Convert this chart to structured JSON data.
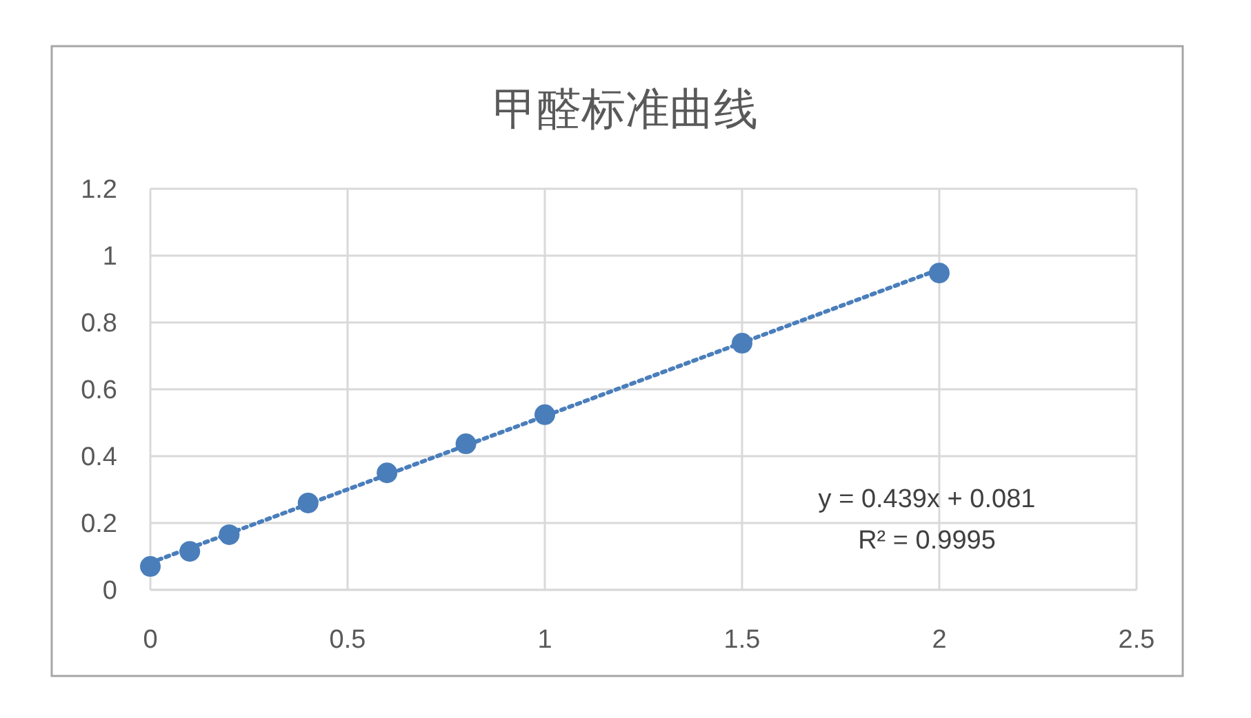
{
  "chart_data": {
    "type": "scatter",
    "title": "甲醛标准曲线",
    "series": [
      {
        "color": "#4a7ebb",
        "x": [
          0,
          0.1,
          0.2,
          0.4,
          0.6,
          0.8,
          1.0,
          1.5,
          2.0
        ],
        "values": [
          0.07,
          0.115,
          0.165,
          0.26,
          0.35,
          0.437,
          0.524,
          0.738,
          0.948
        ],
        "marker": "circle"
      },
      {
        "type": "line",
        "color": "#4a7ebb",
        "x": [
          0,
          2
        ],
        "values": [
          0.081,
          0.959
        ],
        "marker": "none",
        "line_style": "dotted"
      }
    ],
    "xlim": [
      0,
      2.5
    ],
    "xticks": [
      0,
      0.5,
      1,
      1.5,
      2,
      2.5
    ],
    "ylim": [
      0,
      1.2
    ],
    "yticks": [
      0,
      0.2,
      0.4,
      0.6,
      0.8,
      1,
      1.2
    ],
    "grid": true,
    "annotations": [
      "y = 0.439x + 0.081",
      "R² = 0.9995"
    ]
  }
}
